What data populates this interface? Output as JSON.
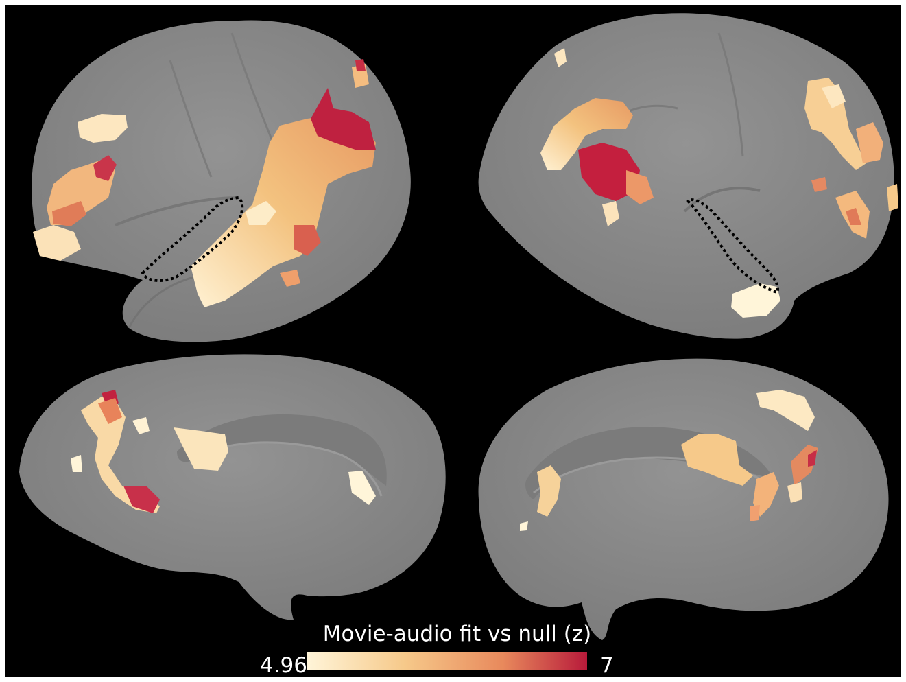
{
  "colorbar": {
    "title": "Movie-audio fit vs null (z)",
    "min_label": "4.96",
    "max_label": "7",
    "min_value": 4.96,
    "max_value": 7,
    "colors": [
      "#fff5d9",
      "#f6c98a",
      "#e8895c",
      "#b81a3a"
    ]
  },
  "colors": {
    "background": "#000000",
    "cortex": "#8a8a8a",
    "cortex_shadow": "#6f6f6f",
    "roi_outline": "#000000"
  },
  "views": [
    "left-lateral",
    "right-lateral",
    "left-medial",
    "right-medial"
  ]
}
